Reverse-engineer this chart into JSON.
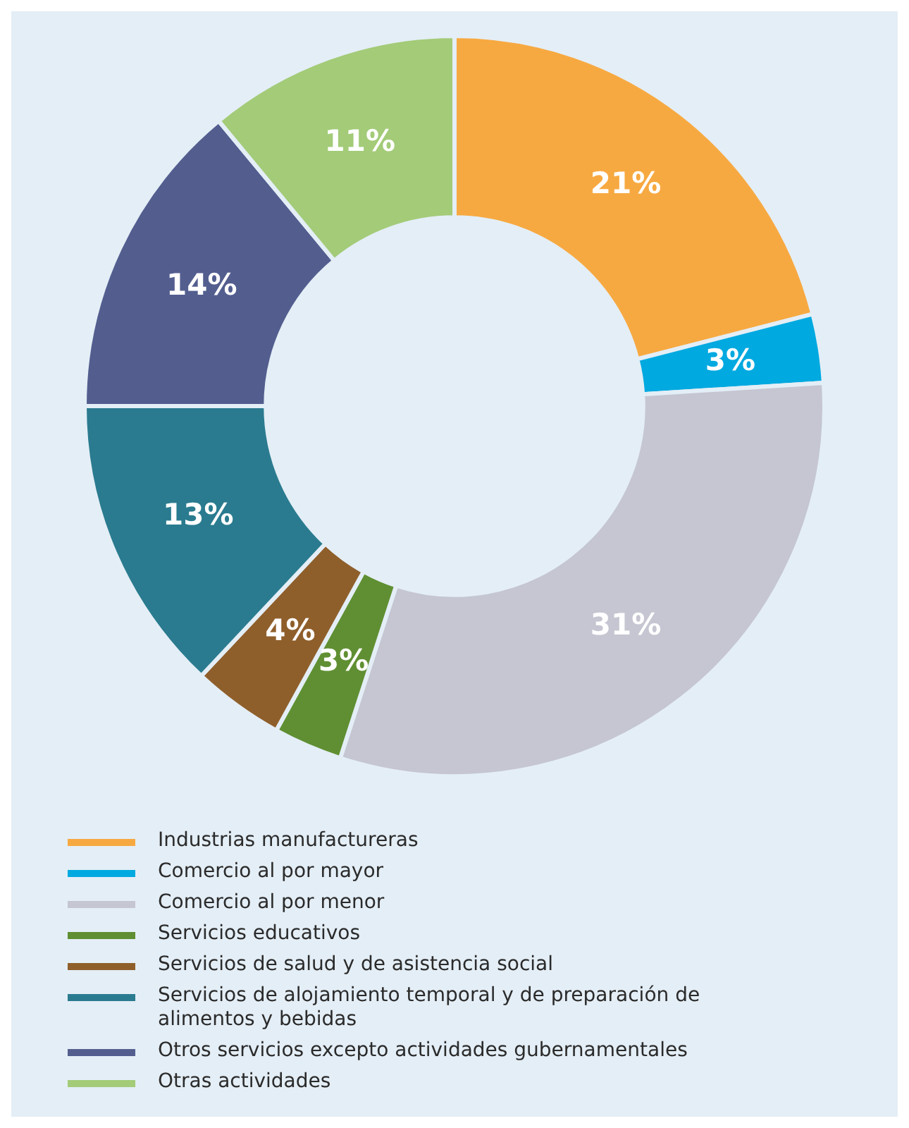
{
  "chart_data": {
    "type": "donut",
    "categories": [
      "Industrias manufactureras",
      "Comercio al por mayor",
      "Comercio al por menor",
      "Servicios educativos",
      "Servicios de salud y de asistencia social",
      "Servicios de alojamiento temporal y de preparación de alimentos y bebidas",
      "Otros servicios excepto actividades gubernamentales",
      "Otras actividades"
    ],
    "values": [
      21,
      3,
      31,
      3,
      4,
      13,
      14,
      11
    ],
    "colors": [
      "#f7a941",
      "#00a9e0",
      "#c5c6d1",
      "#5f8f32",
      "#8f5f2b",
      "#2a7b8f",
      "#535e8f",
      "#a3cb78"
    ],
    "value_labels": [
      "21%",
      "3%",
      "31%",
      "3%",
      "4%",
      "13%",
      "14%",
      "11%"
    ],
    "legend": "bottom"
  }
}
